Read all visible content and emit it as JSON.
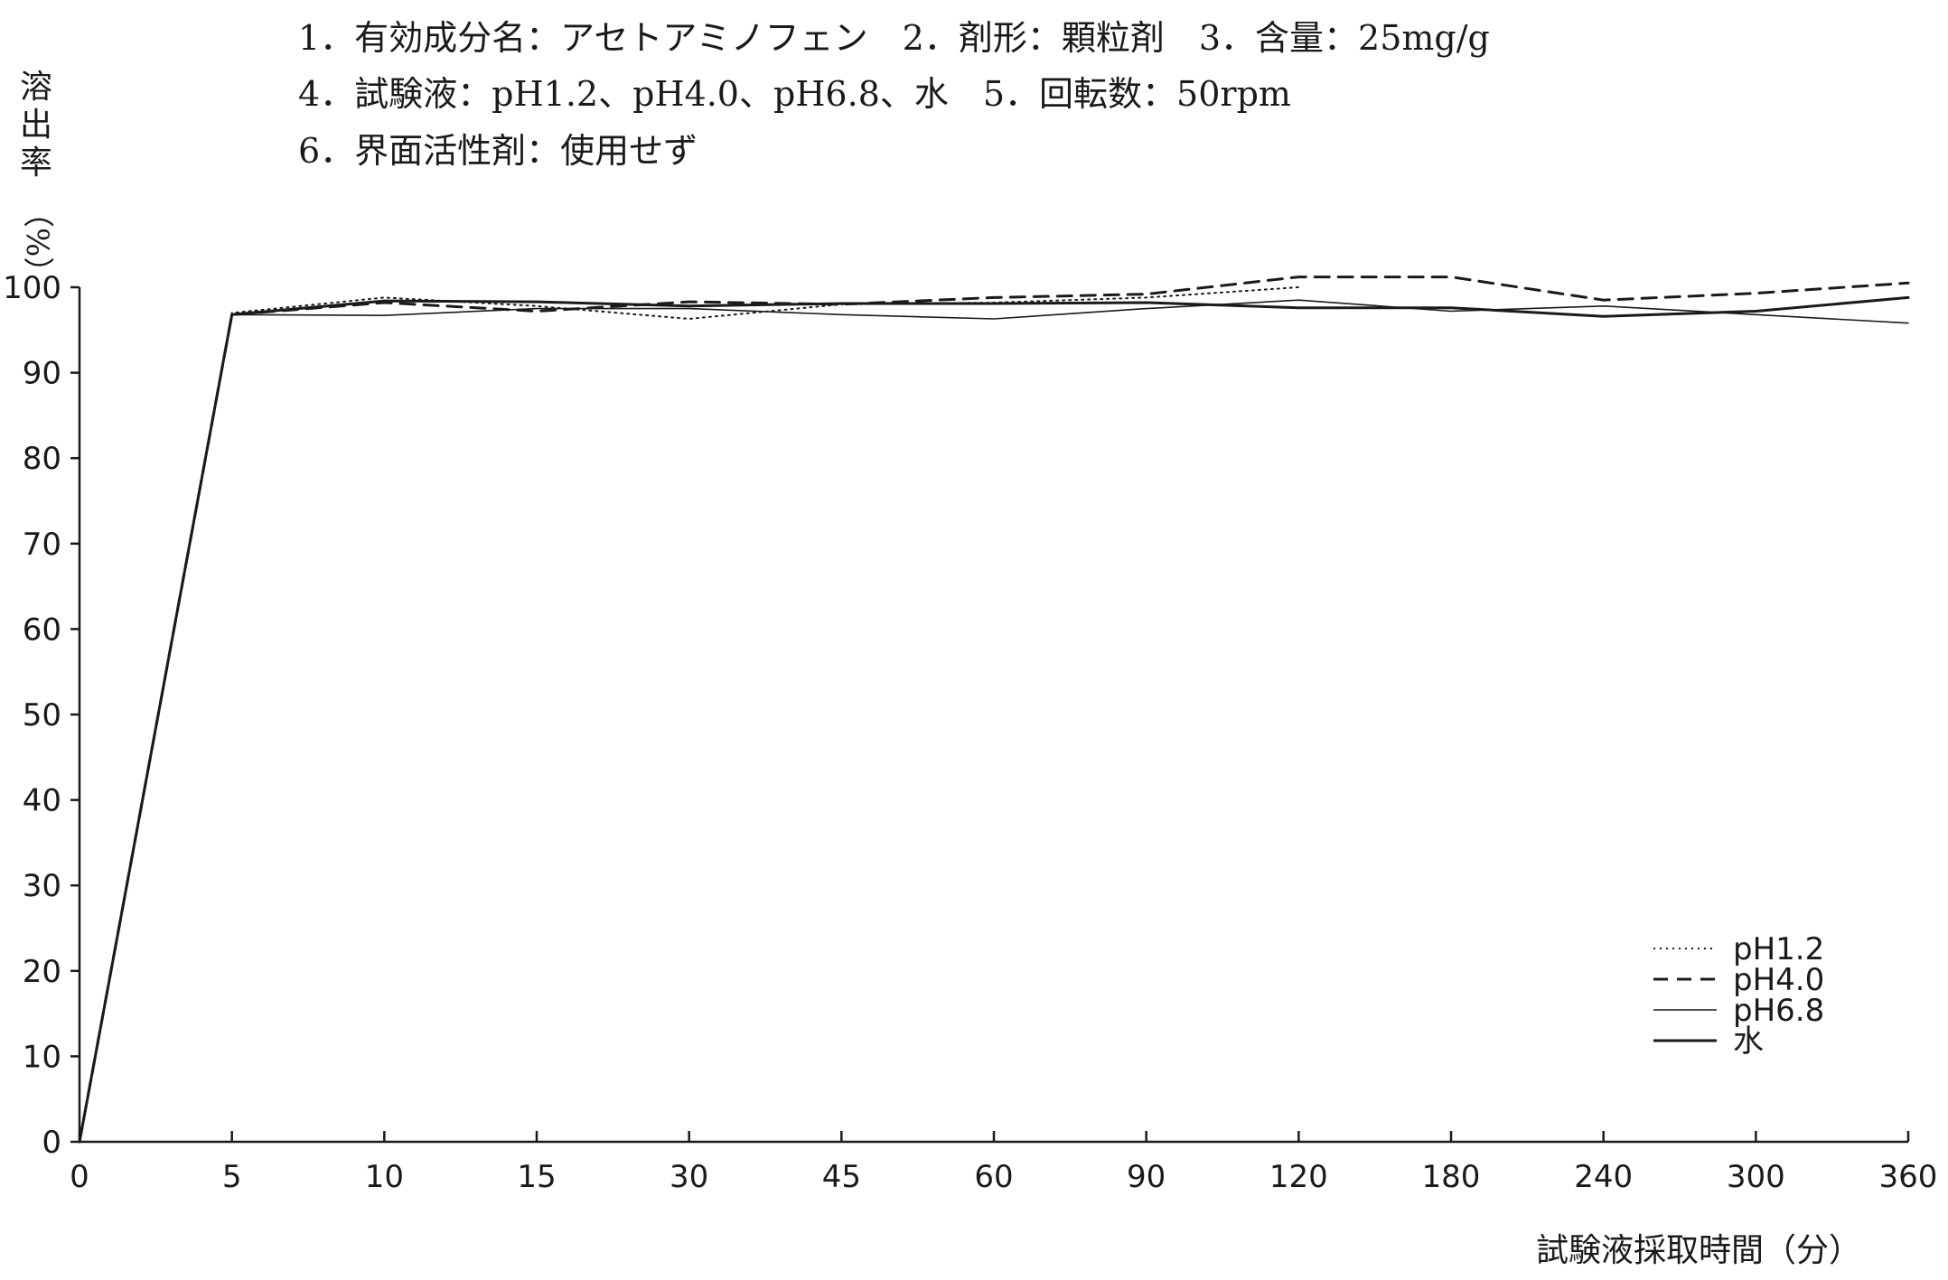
{
  "header": {
    "lines": [
      "1．有効成分名：アセトアミノフェン　2．剤形：顆粒剤　3．含量：25mg/g",
      "4．試験液：pH1.2、pH4.0、pH6.8、水　5．回転数：50rpm",
      "6．界面活性剤：使用せず"
    ]
  },
  "chart_data": {
    "type": "line",
    "title": "",
    "xlabel": "試験液採取時間（分）",
    "ylabel": [
      "溶",
      "出",
      "率",
      "（%）"
    ],
    "ylim": [
      0,
      100
    ],
    "y_ticks": [
      "0",
      "10",
      "20",
      "30",
      "40",
      "50",
      "60",
      "70",
      "80",
      "90",
      "100"
    ],
    "categories": [
      "0",
      "5",
      "10",
      "15",
      "30",
      "45",
      "60",
      "90",
      "120",
      "180",
      "240",
      "300",
      "360"
    ],
    "grid": false,
    "legend_position": "bottom-right",
    "series": [
      {
        "name": "pH1.2",
        "style": "dotted",
        "color": "#1a1a1a",
        "values": [
          0,
          97,
          98.8,
          97.8,
          96.3,
          98.0,
          98.2,
          98.8,
          100.0,
          null,
          null,
          null,
          null
        ]
      },
      {
        "name": "pH4.0",
        "style": "dashed",
        "color": "#1a1a1a",
        "values": [
          0,
          96.8,
          98.2,
          97.2,
          98.3,
          98.0,
          98.8,
          99.2,
          101.2,
          101.2,
          98.5,
          99.3,
          100.5
        ]
      },
      {
        "name": "pH6.8",
        "style": "thin",
        "color": "#1a1a1a",
        "values": [
          0,
          96.8,
          96.7,
          97.5,
          97.5,
          96.8,
          96.3,
          97.5,
          98.5,
          97.2,
          97.8,
          96.8,
          95.8
        ]
      },
      {
        "name": "水",
        "style": "solid",
        "color": "#1a1a1a",
        "values": [
          0,
          96.8,
          98.4,
          98.3,
          97.8,
          98.1,
          98.1,
          98.2,
          97.6,
          97.6,
          96.6,
          97.2,
          98.8
        ]
      }
    ]
  }
}
